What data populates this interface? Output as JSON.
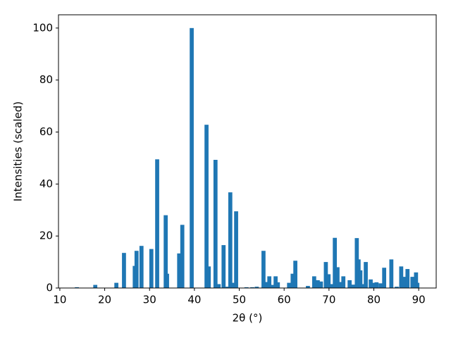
{
  "chart_data": {
    "type": "bar",
    "xlabel": "2θ (°)",
    "ylabel": "Intensities (scaled)",
    "x": [
      13.8,
      17.9,
      22.6,
      24.3,
      26.7,
      27.1,
      28.2,
      30.4,
      31.7,
      33.6,
      33.9,
      36.6,
      37.3,
      39.4,
      42.7,
      43.2,
      44.7,
      45.4,
      46.5,
      47.4,
      48.0,
      48.7,
      49.3,
      51.6,
      52.9,
      53.9,
      55.4,
      56.1,
      56.7,
      57.3,
      58.1,
      58.6,
      61.1,
      61.9,
      62.5,
      65.3,
      66.7,
      67.5,
      68.2,
      69.3,
      69.9,
      70.7,
      71.3,
      71.9,
      72.6,
      73.2,
      74.6,
      75.4,
      76.2,
      76.6,
      77.0,
      77.6,
      78.2,
      79.3,
      79.9,
      80.6,
      81.5,
      82.3,
      83.9,
      85.1,
      86.1,
      86.7,
      87.5,
      88.6,
      89.4,
      89.7
    ],
    "values": [
      0.3,
      1.2,
      2,
      13.5,
      8.5,
      14.3,
      16.2,
      15,
      49.5,
      28,
      5.5,
      13.3,
      24.3,
      100,
      62.8,
      8.3,
      49.3,
      1.5,
      16.5,
      0.5,
      36.8,
      2,
      29.5,
      0.3,
      0.3,
      0.5,
      14.3,
      2.3,
      4.5,
      1.2,
      4.5,
      2.2,
      2,
      5.5,
      10.5,
      0.8,
      4.5,
      3,
      2.5,
      10,
      5.3,
      1.5,
      19.3,
      8,
      2.3,
      4.5,
      3,
      1.3,
      19.2,
      11,
      6.8,
      1.5,
      10,
      3.3,
      2,
      2.2,
      1.8,
      7.8,
      11,
      0.5,
      8.3,
      4.3,
      7.3,
      4.3,
      6,
      2
    ],
    "color": "#1f77b4",
    "xlim": [
      9.7,
      93.9
    ],
    "xticks": [
      10,
      20,
      30,
      40,
      50,
      60,
      70,
      80,
      90
    ],
    "ylim": [
      0,
      105.1
    ],
    "yticks": [
      0,
      20,
      40,
      60,
      80,
      100
    ]
  }
}
